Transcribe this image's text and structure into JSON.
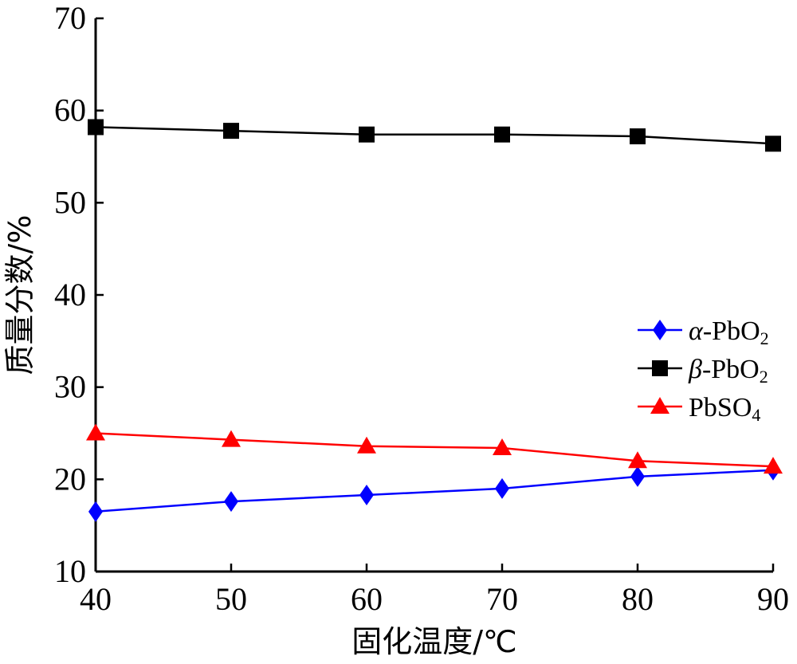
{
  "chart_data": {
    "type": "line",
    "title": "",
    "xlabel": "固化温度/℃",
    "ylabel": "质量分数/%",
    "x": [
      40,
      50,
      60,
      70,
      80,
      90
    ],
    "xlim": [
      40,
      90
    ],
    "ylim": [
      10,
      70
    ],
    "xticks": [
      "40",
      "50",
      "60",
      "70",
      "80",
      "90"
    ],
    "yticks": [
      "10",
      "20",
      "30",
      "40",
      "50",
      "60",
      "70"
    ],
    "grid": false,
    "legend_position": "right",
    "series": [
      {
        "name": "α-PbO₂",
        "name_main": "α",
        "name_mid": "-PbO",
        "name_sub": "2",
        "color": "#0000ff",
        "marker": "diamond",
        "values": [
          16.5,
          17.6,
          18.3,
          19.0,
          20.3,
          21.0
        ]
      },
      {
        "name": "β-PbO₂",
        "name_main": "β",
        "name_mid": "-PbO",
        "name_sub": "2",
        "color": "#000000",
        "marker": "square",
        "values": [
          58.2,
          57.8,
          57.4,
          57.4,
          57.2,
          56.4
        ]
      },
      {
        "name": "PbSO₄",
        "name_main": "",
        "name_mid": "PbSO",
        "name_sub": "4",
        "color": "#ff0000",
        "marker": "triangle",
        "values": [
          25.0,
          24.3,
          23.6,
          23.4,
          22.0,
          21.4
        ]
      }
    ]
  }
}
